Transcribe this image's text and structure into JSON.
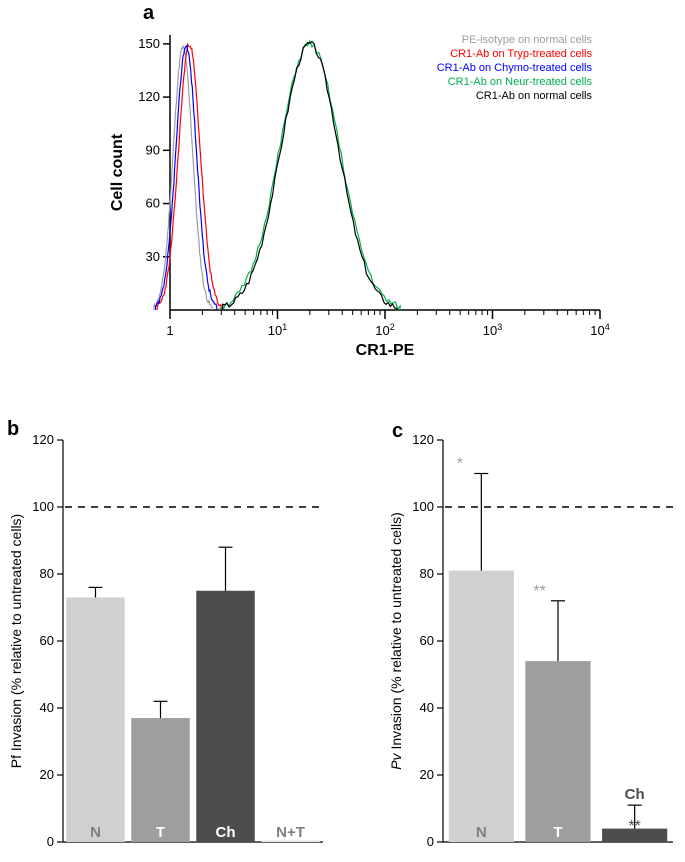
{
  "panel_a": {
    "label": "a",
    "type": "histogram-overlay",
    "xlabel": "CR1-PE",
    "ylabel": "Cell count",
    "x_log": true,
    "x_ticks": [
      1,
      10,
      100,
      1000,
      10000
    ],
    "x_tick_labels": [
      "1",
      "10¹",
      "10²",
      "10³",
      "10⁴"
    ],
    "y_ticks": [
      30,
      60,
      90,
      120,
      150
    ],
    "ylim": [
      0,
      155
    ],
    "background_color": "#ffffff",
    "axis_color": "#000000",
    "series": [
      {
        "name": "PE-isotype on normal cells",
        "color": "#9e9e9e"
      },
      {
        "name": "CR1-Ab on Tryp-treated cells",
        "color": "#ff0000"
      },
      {
        "name": "CR1-Ab on Chymo-treated cells",
        "color": "#0000ff"
      },
      {
        "name": "CR1-Ab on Neur-treated cells",
        "color": "#00b050"
      },
      {
        "name": "CR1-Ab on normal cells",
        "color": "#000000"
      }
    ],
    "label_fontsize": 16,
    "tick_fontsize": 13,
    "legend_fontsize": 11
  },
  "panel_b": {
    "label": "b",
    "type": "bar",
    "ylabel": "Pf Invasion (% relative to untreated cells)",
    "y_ticks": [
      0,
      20,
      40,
      60,
      80,
      100,
      120
    ],
    "ylim": [
      0,
      120
    ],
    "reference_line": 100,
    "bars": [
      {
        "label": "N",
        "value": 73,
        "err": 3,
        "fill": "#d0d0d0",
        "text_color": "#808080"
      },
      {
        "label": "T",
        "value": 37,
        "err": 5,
        "fill": "#9e9e9e",
        "text_color": "#ffffff"
      },
      {
        "label": "Ch",
        "value": 75,
        "err": 13,
        "fill": "#4d4d4d",
        "text_color": "#ffffff"
      },
      {
        "label": "N+T",
        "value": 0.5,
        "err": 0,
        "fill": "#e8e8e8",
        "text_color": "#808080"
      }
    ],
    "bar_width": 0.9,
    "axis_color": "#000000",
    "label_fontsize": 14,
    "tick_fontsize": 13
  },
  "panel_c": {
    "label": "c",
    "type": "bar",
    "ylabel": "Pv Invasion (% relative to untreated cells)",
    "ylabel_style": "italic-prefix",
    "y_ticks": [
      0,
      20,
      40,
      60,
      80,
      100,
      120
    ],
    "ylim": [
      0,
      120
    ],
    "reference_line": 100,
    "bars": [
      {
        "label": "N",
        "value": 81,
        "err": 29,
        "fill": "#d0d0d0",
        "text_color": "#808080",
        "sig": "*",
        "sig_color": "#9e9e9e"
      },
      {
        "label": "T",
        "value": 54,
        "err": 18,
        "fill": "#9e9e9e",
        "text_color": "#ffffff",
        "sig": "**",
        "sig_color": "#9e9e9e"
      },
      {
        "label": "Ch",
        "value": 4,
        "err": 7,
        "fill": "#4d4d4d",
        "text_color": "#ffffff",
        "sig": "**",
        "sig_color": "#4d4d4d",
        "label_above": true
      }
    ],
    "bar_width": 0.85,
    "axis_color": "#000000",
    "label_fontsize": 14,
    "tick_fontsize": 13
  }
}
